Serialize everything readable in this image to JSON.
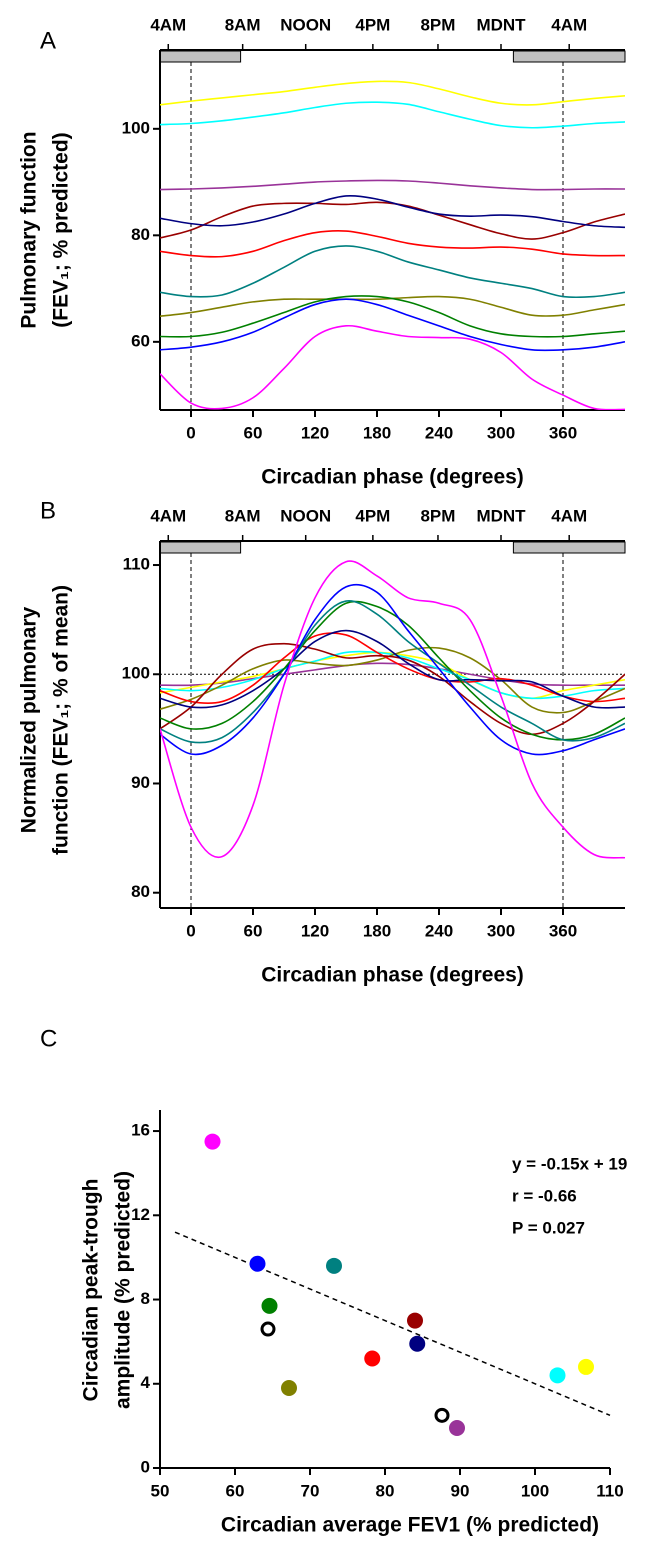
{
  "chart_data": [
    {
      "type": "line",
      "panel_label": "A",
      "ylabel": [
        "Pulmonary function",
        "(FEV₁; % predicted)"
      ],
      "xlabel": "Circadian phase (degrees)",
      "xlim": [
        -30,
        420
      ],
      "ylim": [
        47.2,
        114.8
      ],
      "xticks": [
        0,
        60,
        120,
        180,
        240,
        300,
        360
      ],
      "yticks": [
        60,
        80,
        100
      ],
      "top_ticks": [
        {
          "value": -22,
          "label": "4AM"
        },
        {
          "value": 50,
          "label": "8AM"
        },
        {
          "value": 111,
          "label": "NOON"
        },
        {
          "value": 176,
          "label": "4PM"
        },
        {
          "value": 239,
          "label": "8PM"
        },
        {
          "value": 300,
          "label": "MDNT"
        },
        {
          "value": 366,
          "label": "4AM"
        }
      ],
      "sleep_bands": [
        [
          -30,
          48
        ],
        [
          312,
          420
        ]
      ],
      "ref_lines_x": [
        0,
        360
      ],
      "x": [
        -30,
        0,
        30,
        60,
        90,
        120,
        150,
        180,
        210,
        240,
        270,
        300,
        330,
        360,
        390,
        420
      ],
      "series": [
        {
          "color": "#ffff00",
          "values": [
            104.5,
            105.2,
            105.8,
            106.4,
            107,
            107.8,
            108.5,
            108.9,
            108.7,
            107.5,
            106,
            104.8,
            104.5,
            105.1,
            105.7,
            106.2
          ]
        },
        {
          "color": "#00ffff",
          "values": [
            100.8,
            101,
            101.5,
            102.2,
            103,
            104,
            104.8,
            105,
            104.6,
            103.2,
            101.8,
            100.6,
            100.2,
            100.5,
            101,
            101.3
          ]
        },
        {
          "color": "#993399",
          "values": [
            88.6,
            88.7,
            88.9,
            89.2,
            89.6,
            90,
            90.2,
            90.3,
            90.2,
            89.8,
            89.3,
            88.9,
            88.6,
            88.6,
            88.7,
            88.7
          ]
        },
        {
          "color": "#990000",
          "values": [
            79.5,
            81,
            83.5,
            85.5,
            86,
            86,
            85.8,
            86.2,
            85.5,
            83.8,
            82,
            80.3,
            79.3,
            80.5,
            82.5,
            84
          ]
        },
        {
          "color": "#000080",
          "values": [
            83.2,
            82.2,
            81.8,
            82.5,
            84,
            86,
            87.4,
            86.8,
            85.3,
            84,
            83.6,
            83.8,
            83.5,
            82.6,
            81.8,
            81.5
          ]
        },
        {
          "color": "#ff0000",
          "values": [
            77,
            76.2,
            76,
            77,
            79,
            80.5,
            80.8,
            79.8,
            78.5,
            77.8,
            77.6,
            77.8,
            77.4,
            76.5,
            76.2,
            76.2
          ]
        },
        {
          "color": "#008080",
          "values": [
            69.3,
            68.5,
            68.8,
            71,
            74,
            77,
            78,
            77,
            75,
            73.5,
            72,
            71,
            70,
            68.5,
            68.5,
            69.3
          ]
        },
        {
          "color": "#808000",
          "values": [
            64.8,
            65.5,
            66.5,
            67.5,
            68,
            68,
            68,
            68,
            68.3,
            68.5,
            68,
            66.5,
            65,
            65,
            66,
            67
          ]
        },
        {
          "color": "#008000",
          "values": [
            61,
            61,
            61.8,
            63.5,
            65.5,
            67.5,
            68.5,
            68.5,
            67.5,
            65.5,
            63,
            61.5,
            61,
            61,
            61.5,
            62
          ]
        },
        {
          "color": "#0000ff",
          "values": [
            58.5,
            59,
            60,
            61.8,
            64.5,
            67,
            68,
            67,
            65,
            63,
            61,
            59.5,
            58.5,
            58.5,
            59,
            60
          ]
        },
        {
          "color": "#ff00ff",
          "values": [
            54,
            48.5,
            47.5,
            49.5,
            55,
            61,
            63,
            62,
            61,
            60.8,
            60.5,
            58,
            53,
            50,
            47.5,
            47.3
          ]
        }
      ]
    },
    {
      "type": "line",
      "panel_label": "B",
      "ylabel": [
        "Normalized pulmonary",
        "function (FEV₁; % of mean)"
      ],
      "xlabel": "Circadian phase (degrees)",
      "xlim": [
        -30,
        420
      ],
      "ylim": [
        78.6,
        112.2
      ],
      "xticks": [
        0,
        60,
        120,
        180,
        240,
        300,
        360
      ],
      "yticks": [
        80,
        90,
        100,
        110
      ],
      "top_ticks": [
        {
          "value": -22,
          "label": "4AM"
        },
        {
          "value": 50,
          "label": "8AM"
        },
        {
          "value": 111,
          "label": "NOON"
        },
        {
          "value": 176,
          "label": "4PM"
        },
        {
          "value": 239,
          "label": "8PM"
        },
        {
          "value": 300,
          "label": "MDNT"
        },
        {
          "value": 366,
          "label": "4AM"
        }
      ],
      "sleep_bands": [
        [
          -30,
          48
        ],
        [
          312,
          420
        ]
      ],
      "ref_lines_x": [
        0,
        360
      ],
      "ref_line_y": 100,
      "x": [
        -30,
        0,
        30,
        60,
        90,
        120,
        150,
        180,
        210,
        240,
        270,
        300,
        330,
        360,
        390,
        420
      ],
      "series": [
        {
          "color": "#993399",
          "values": [
            99,
            99,
            99.2,
            99.6,
            100,
            100.4,
            100.8,
            101,
            100.9,
            100.5,
            100,
            99.5,
            99.1,
            99,
            99,
            99
          ]
        },
        {
          "color": "#ffff00",
          "values": [
            98.3,
            98.8,
            99.3,
            99.8,
            100.5,
            101.2,
            101.7,
            102,
            101.7,
            101,
            99.5,
            98.3,
            97.8,
            98.5,
            99,
            99.5
          ]
        },
        {
          "color": "#00ffff",
          "values": [
            98.7,
            98.5,
            98.8,
            99.5,
            100.5,
            101.2,
            102,
            102,
            101.5,
            100.5,
            99.5,
            98.3,
            97.8,
            98,
            98.5,
            98.7
          ]
        },
        {
          "color": "#808000",
          "values": [
            96.8,
            97.7,
            99,
            100.5,
            101.3,
            101,
            100.8,
            101.3,
            102.2,
            102.4,
            101.5,
            99.5,
            97,
            96.5,
            97.5,
            98.7
          ]
        },
        {
          "color": "#ff0000",
          "values": [
            98.5,
            97.5,
            97.5,
            99,
            101.5,
            103.5,
            103.6,
            102,
            100.5,
            99.5,
            99.3,
            99.6,
            99,
            98,
            97.5,
            97.8
          ]
        },
        {
          "color": "#990000",
          "values": [
            95,
            97,
            100,
            102.3,
            102.8,
            102.3,
            101.5,
            101.7,
            101.3,
            99.8,
            97.5,
            95.5,
            94.5,
            95.5,
            97.5,
            100
          ]
        },
        {
          "color": "#000080",
          "values": [
            97.8,
            97,
            97.2,
            98.5,
            100.5,
            103,
            104,
            103,
            101,
            99.5,
            99.5,
            99.4,
            99.3,
            98,
            97,
            97
          ]
        },
        {
          "color": "#008000",
          "values": [
            96,
            95,
            95.5,
            97.5,
            100.5,
            104,
            106.5,
            106.2,
            104.5,
            101.5,
            98.5,
            96,
            94.5,
            94,
            94.5,
            96
          ]
        },
        {
          "color": "#008080",
          "values": [
            95,
            93.8,
            94.2,
            96.5,
            100,
            104.5,
            106.7,
            105.5,
            103,
            101,
            99,
            97,
            95.5,
            94,
            94.2,
            95.5
          ]
        },
        {
          "color": "#0000ff",
          "values": [
            94.5,
            92.7,
            93.5,
            96,
            100,
            105,
            108,
            107.5,
            104,
            100.5,
            97,
            94,
            92.7,
            93,
            94,
            95
          ]
        },
        {
          "color": "#ff00ff",
          "values": [
            95,
            86,
            83.3,
            88,
            99,
            107,
            110.3,
            109,
            107,
            106.5,
            105,
            98,
            90,
            86,
            83.5,
            83.2
          ]
        }
      ]
    },
    {
      "type": "scatter",
      "panel_label": "C",
      "ylabel": [
        "Circadian peak-trough",
        "amplitude (% predicted)"
      ],
      "xlabel": "Circadian average FEV1 (% predicted)",
      "xlim": [
        50,
        110
      ],
      "ylim": [
        0,
        17
      ],
      "xticks": [
        50,
        60,
        70,
        80,
        90,
        100,
        110
      ],
      "yticks": [
        0,
        4,
        8,
        12,
        16
      ],
      "x": [
        57,
        63,
        64.6,
        64.4,
        67.2,
        73.2,
        78.3,
        84,
        84.3,
        87.6,
        89.6,
        103,
        106.8
      ],
      "values": [
        15.5,
        9.7,
        7.7,
        6.6,
        3.8,
        9.6,
        5.2,
        7.0,
        5.9,
        2.5,
        1.9,
        4.4,
        4.8
      ],
      "colors": [
        "#ff00ff",
        "#0000ff",
        "#008000",
        "#000000",
        "#808000",
        "#008080",
        "#ff0000",
        "#990000",
        "#000080",
        "#000000",
        "#993399",
        "#00ffff",
        "#ffff00"
      ],
      "filled": [
        true,
        true,
        true,
        false,
        true,
        true,
        true,
        true,
        true,
        false,
        true,
        true,
        true
      ],
      "fit": {
        "x": [
          52,
          110
        ],
        "y": [
          11.2,
          2.5
        ]
      },
      "annotations": [
        "y = -0.15x + 19",
        "r = -0.66",
        "P = 0.027"
      ]
    }
  ]
}
